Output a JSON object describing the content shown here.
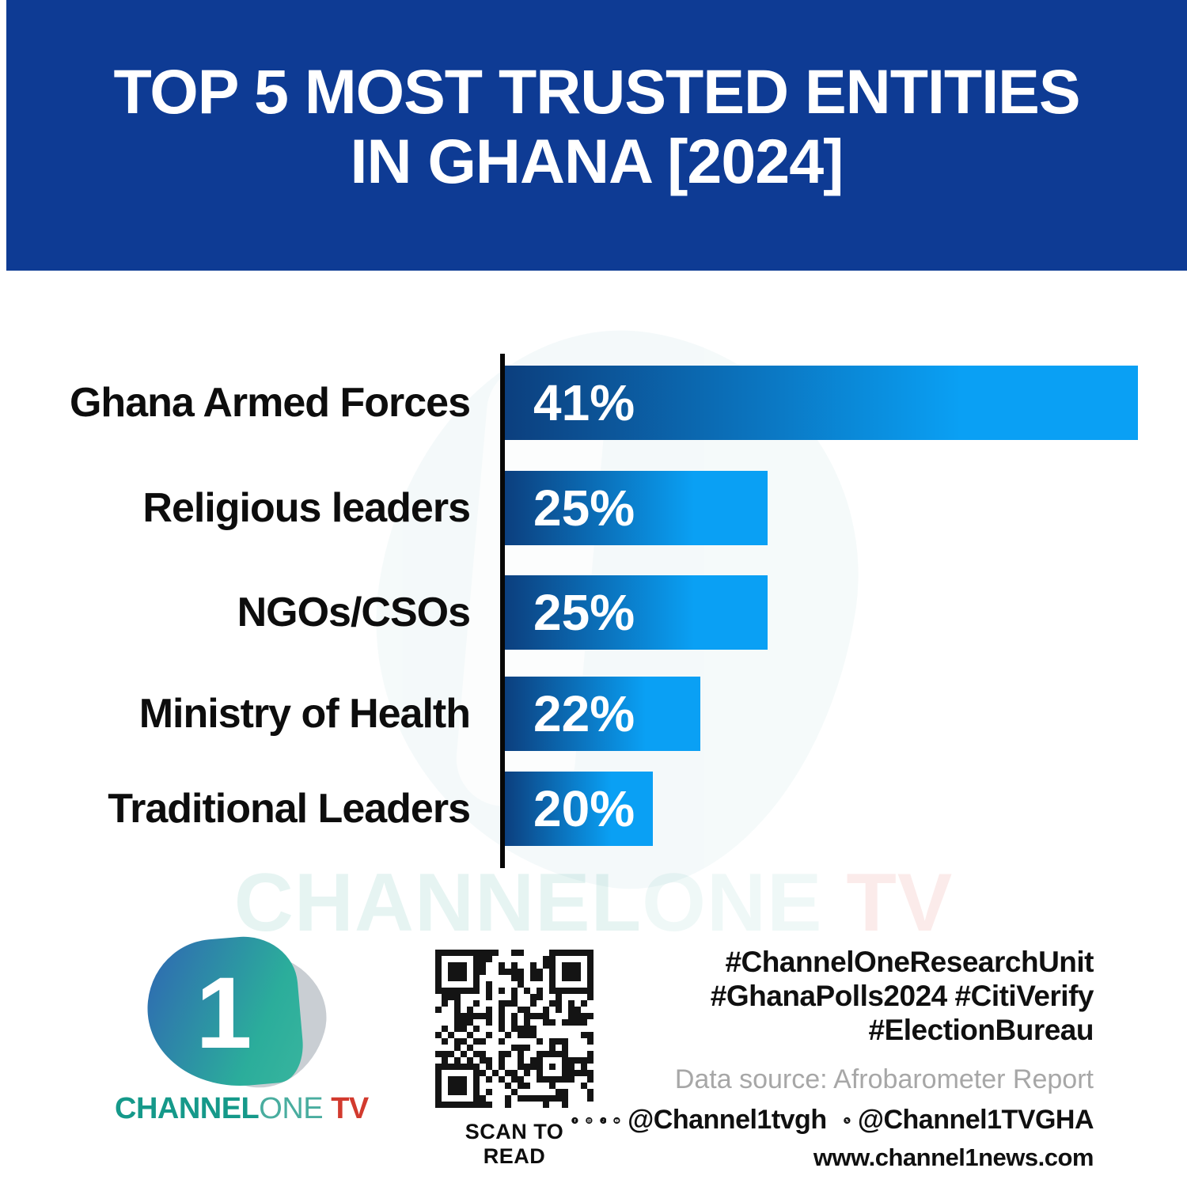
{
  "header": {
    "title_line1": "TOP 5 MOST TRUSTED ENTITIES",
    "title_line2": "IN GHANA [2024]",
    "banner_color": "#0E3B94"
  },
  "chart_data": {
    "type": "bar",
    "orientation": "horizontal",
    "title": "TOP 5 MOST TRUSTED ENTITIES IN GHANA [2024]",
    "categories": [
      "Ghana Armed Forces",
      "Religious leaders",
      "NGOs/CSOs",
      "Ministry of Health",
      "Traditional Leaders"
    ],
    "values": [
      41,
      25,
      25,
      22,
      20
    ],
    "unit": "%",
    "value_labels": [
      "41%",
      "25%",
      "25%",
      "22%",
      "20%"
    ],
    "bar_gradient": [
      "#0C3F7E",
      "#0AA0F4"
    ],
    "axis_color": "#070707",
    "category_label_color": "#0D0D0D",
    "value_label_color": "#FFFFFF",
    "legend": "none",
    "grid": "off"
  },
  "watermark": {
    "channel": "CHANNEL",
    "one": "ONE",
    "tv": "TV"
  },
  "footer": {
    "logo": {
      "one_numeral": "1",
      "channel": "CHANNEL",
      "one": "ONE",
      "tv": " TV"
    },
    "qr_caption": "SCAN TO READ",
    "hashtags": [
      "#ChannelOneResearchUnit",
      "#GhanaPolls2024 #CitiVerify",
      "#ElectionBureau"
    ],
    "data_source": "Data source: Afrobarometer Report",
    "social_handle_1": "@Channel1tvgh",
    "social_handle_2": "@Channel1TVGHA",
    "website": "www.channel1news.com"
  }
}
